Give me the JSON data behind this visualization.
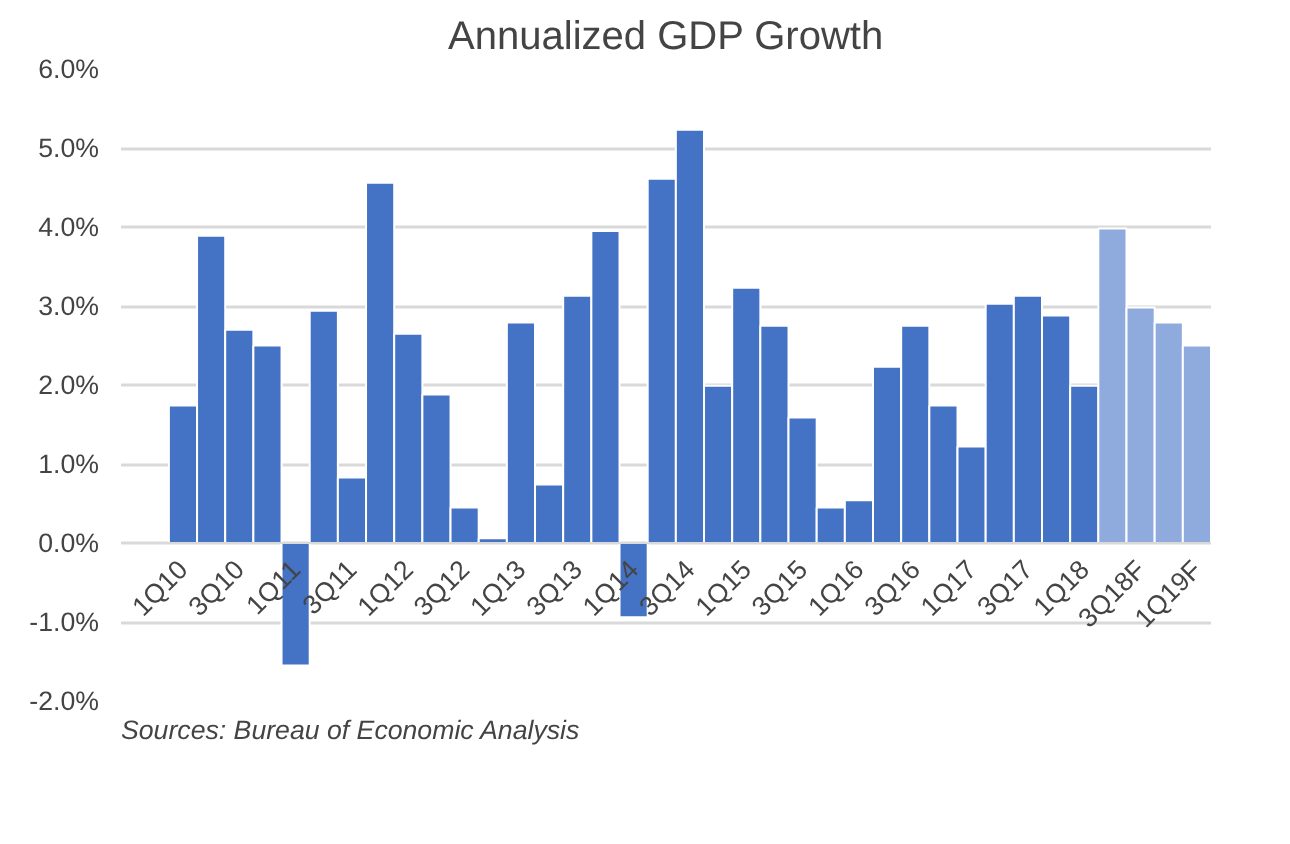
{
  "chart_data": {
    "type": "bar",
    "title": "Annualized GDP Growth",
    "categories": [
      "1Q10",
      null,
      "3Q10",
      null,
      "1Q11",
      null,
      "3Q11",
      null,
      "1Q12",
      null,
      "3Q12",
      null,
      "1Q13",
      null,
      "3Q13",
      null,
      "1Q14",
      null,
      "3Q14",
      null,
      "1Q15",
      null,
      "3Q15",
      null,
      "1Q16",
      null,
      "3Q16",
      null,
      "1Q17",
      null,
      "3Q17",
      null,
      "1Q18",
      null,
      "3Q18F",
      null,
      "1Q19F"
    ],
    "values": [
      1.74,
      3.89,
      2.7,
      2.5,
      -1.55,
      2.94,
      0.83,
      4.56,
      2.65,
      1.88,
      0.45,
      0.06,
      2.79,
      0.74,
      3.13,
      3.95,
      -0.94,
      4.61,
      5.23,
      1.99,
      3.23,
      2.75,
      1.59,
      0.45,
      0.54,
      2.23,
      2.75,
      1.74,
      1.22,
      3.03,
      3.13,
      2.88,
      1.99,
      3.98,
      2.98,
      2.79,
      2.5
    ],
    "colors": [
      "#4472c4",
      "#4472c4",
      "#4472c4",
      "#4472c4",
      "#4472c4",
      "#4472c4",
      "#4472c4",
      "#4472c4",
      "#4472c4",
      "#4472c4",
      "#4472c4",
      "#4472c4",
      "#4472c4",
      "#4472c4",
      "#4472c4",
      "#4472c4",
      "#4472c4",
      "#4472c4",
      "#4472c4",
      "#4472c4",
      "#4472c4",
      "#4472c4",
      "#4472c4",
      "#4472c4",
      "#4472c4",
      "#4472c4",
      "#4472c4",
      "#4472c4",
      "#4472c4",
      "#4472c4",
      "#4472c4",
      "#4472c4",
      "#4472c4",
      "#8faadc",
      "#8faadc",
      "#8faadc",
      "#8faadc"
    ],
    "ylim": [
      -2,
      6
    ],
    "yticks": [
      {
        "value": -2,
        "label": "-2.0%"
      },
      {
        "value": -1,
        "label": "-1.0%"
      },
      {
        "value": 0,
        "label": "0.0%"
      },
      {
        "value": 1,
        "label": "1.0%"
      },
      {
        "value": 2,
        "label": "2.0%"
      },
      {
        "value": 3,
        "label": "3.0%"
      },
      {
        "value": 4,
        "label": "4.0%"
      },
      {
        "value": 5,
        "label": "5.0%"
      },
      {
        "value": 6,
        "label": "6.0%"
      }
    ],
    "grid": "y",
    "annotations": [
      "Sources: Bureau of Economic Analysis"
    ]
  }
}
